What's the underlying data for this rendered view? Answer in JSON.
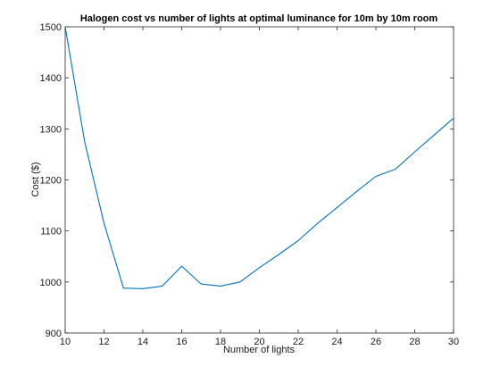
{
  "chart_data": {
    "type": "line",
    "title": "Halogen cost vs number of lights at optimal luminance for 10m by 10m room",
    "xlabel": "Number of lights",
    "ylabel": "Cost ($)",
    "xlim": [
      10,
      30
    ],
    "ylim": [
      900,
      1500
    ],
    "xticks": [
      10,
      12,
      14,
      16,
      18,
      20,
      22,
      24,
      26,
      28,
      30
    ],
    "yticks": [
      900,
      1000,
      1100,
      1200,
      1300,
      1400,
      1500
    ],
    "grid": false,
    "legend": "none",
    "series": [
      {
        "color": "#0072bd",
        "x": [
          10,
          11,
          12,
          13,
          14,
          15,
          16,
          17,
          18,
          19,
          20,
          21,
          22,
          23,
          24,
          25,
          26,
          27,
          28,
          29,
          30
        ],
        "y": [
          1500,
          1275,
          1115,
          988,
          987,
          992,
          1031,
          996,
          992,
          1000,
          1028,
          1054,
          1081,
          1115,
          1146,
          1177,
          1207,
          1221,
          1255,
          1288,
          1321
        ]
      }
    ]
  }
}
